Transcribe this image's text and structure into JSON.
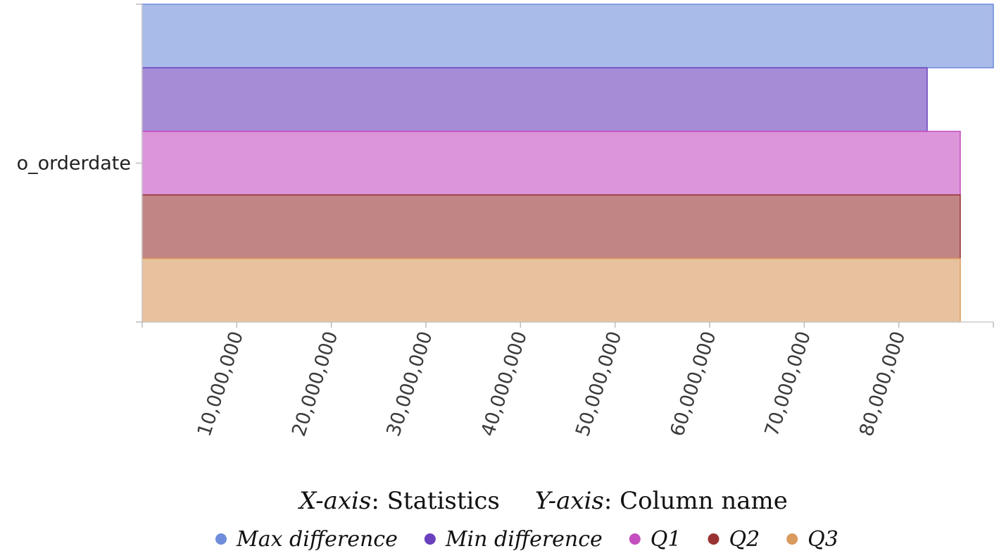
{
  "chart_data": {
    "type": "bar",
    "orientation": "horizontal",
    "categories": [
      "o_orderdate"
    ],
    "series": [
      {
        "name": "Max difference",
        "values": [
          90000000
        ],
        "color": "#6f8ddb"
      },
      {
        "name": "Min difference",
        "values": [
          83000000
        ],
        "color": "#6a40bd"
      },
      {
        "name": "Q1",
        "values": [
          86500000
        ],
        "color": "#c44ec0"
      },
      {
        "name": "Q2",
        "values": [
          86500000
        ],
        "color": "#993333"
      },
      {
        "name": "Q3",
        "values": [
          86500000
        ],
        "color": "#d99a5e"
      }
    ],
    "xlim": [
      0,
      90000000
    ],
    "x_ticks": [
      10000000,
      20000000,
      30000000,
      40000000,
      50000000,
      60000000,
      70000000,
      80000000
    ],
    "x_tick_labels": [
      "10,000,000",
      "20,000,000",
      "30,000,000",
      "40,000,000",
      "50,000,000",
      "60,000,000",
      "70,000,000",
      "80,000,000"
    ],
    "caption": {
      "x_prefix": "X-axis",
      "x_text": ": Statistics",
      "y_prefix": "Y-axis",
      "y_text": ": Column name"
    },
    "legend_position": "bottom"
  }
}
